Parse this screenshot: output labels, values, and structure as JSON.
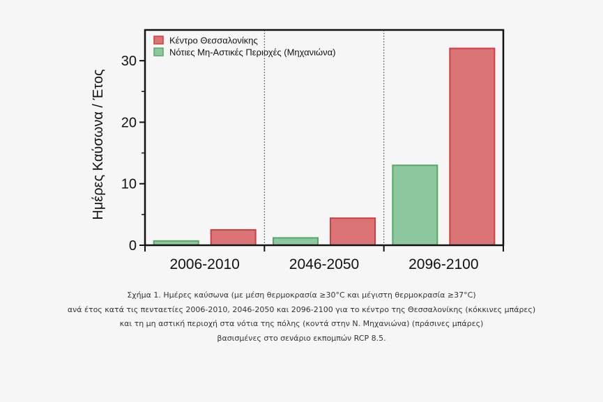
{
  "chart_data": {
    "type": "bar",
    "categories": [
      "2006-2010",
      "2046-2050",
      "2096-2100"
    ],
    "series": [
      {
        "name": "Νότιες Μη-Αστικές Περιοχές (Μηχανιώνα)",
        "color": "#8cc79d",
        "edge": "#56a86a",
        "values": [
          0.7,
          1.2,
          13
        ]
      },
      {
        "name": "Κέντρο Θεσσαλονίκης",
        "color": "#db7474",
        "edge": "#cf3d42",
        "values": [
          2.5,
          4.4,
          32
        ]
      }
    ],
    "legend_order": [
      1,
      0
    ],
    "title": "",
    "xlabel": "",
    "ylabel": "Ημέρες Καύσωνα / Έτος",
    "ylim": [
      0,
      35
    ],
    "yticks": [
      0,
      10,
      20,
      30
    ],
    "grid": false,
    "legend_position": "top-left",
    "group_separators": "dashed vertical lines"
  },
  "caption": {
    "lines": [
      "Σχήμα 1. Ημέρες καύσωνα (με μέση θερμοκρασία ≥30°C και μέγιστη θερμοκρασία ≥37°C)",
      "ανά έτος κατά τις πενταετίες 2006-2010, 2046-2050 και 2096-2100 για το κέντρο της Θεσσαλονίκης (κόκκινες μπάρες)",
      "και τη μη αστική περιοχή στα νότια της πόλης (κοντά στην Ν. Μηχανιώνα) (πράσινες μπάρες)",
      "βασισμένες στο σενάριο εκπομπών RCP 8.5."
    ]
  }
}
